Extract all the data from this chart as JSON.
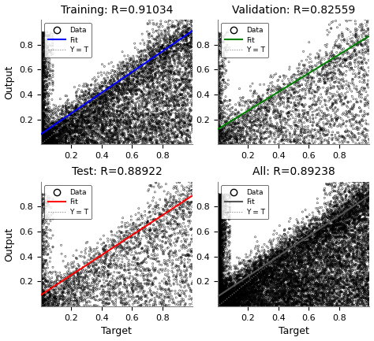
{
  "subplots": [
    {
      "title": "Training: R=0.91034",
      "fit_color": "blue",
      "fit_slope": 0.83,
      "fit_intercept": 0.08,
      "n_points": 8000,
      "seed": 42
    },
    {
      "title": "Validation: R=0.82559",
      "fit_color": "green",
      "fit_slope": 0.75,
      "fit_intercept": 0.12,
      "n_points": 3000,
      "seed": 7
    },
    {
      "title": "Test: R=0.88922",
      "fit_color": "red",
      "fit_slope": 0.8,
      "fit_intercept": 0.09,
      "n_points": 3000,
      "seed": 13
    },
    {
      "title": "All: R=0.89238",
      "fit_color": "#555555",
      "fit_slope": 0.81,
      "fit_intercept": 0.08,
      "n_points": 14000,
      "seed": 99
    }
  ],
  "xlim": [
    0.0,
    1.0
  ],
  "ylim": [
    0.0,
    1.0
  ],
  "xticks": [
    0.2,
    0.4,
    0.6,
    0.8
  ],
  "yticks": [
    0.2,
    0.4,
    0.6,
    0.8
  ],
  "xlabel": "Target",
  "ylabel": "Output",
  "marker_size": 2.5,
  "marker_color": "black",
  "background_color": "white",
  "title_fontsize": 10,
  "tick_fontsize": 8,
  "label_fontsize": 9
}
